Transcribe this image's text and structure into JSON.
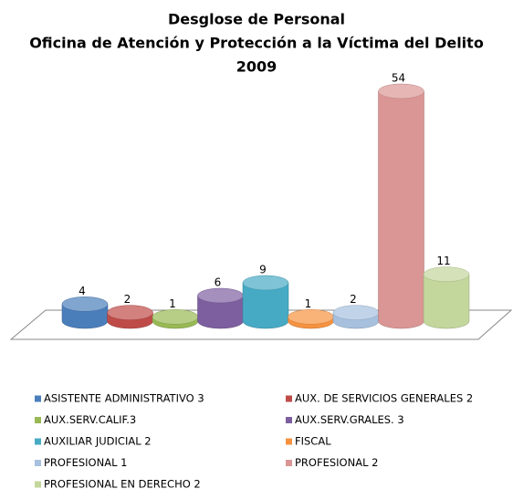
{
  "chart_data": {
    "type": "bar3d",
    "title": [
      "Desglose de Personal",
      "Oficina de Atención y Protección  a la Víctima del Delito",
      "2009"
    ],
    "categories": [
      "ASISTENTE ADMINISTRATIVO 3",
      "AUX. DE SERVICIOS GENERALES 2",
      "AUX.SERV.CALIF.3",
      "AUX.SERV.GRALES. 3",
      "AUXILIAR JUDICIAL 2",
      "FISCAL",
      "PROFESIONAL 1",
      "PROFESIONAL 2",
      "PROFESIONAL EN DERECHO 2"
    ],
    "values": [
      4,
      2,
      1,
      6,
      9,
      1,
      2,
      54,
      11
    ],
    "colors": [
      "#4a7ebb",
      "#be4b48",
      "#98b954",
      "#7d5fa0",
      "#46aac5",
      "#f69240",
      "#a7c0de",
      "#da9694",
      "#c3d69b"
    ],
    "legend": "bottom"
  }
}
